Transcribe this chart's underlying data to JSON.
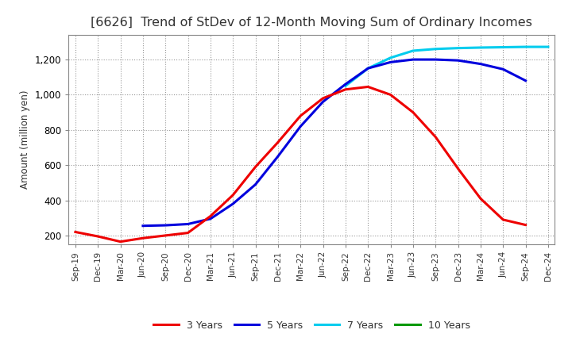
{
  "title": "[6626]  Trend of StDev of 12-Month Moving Sum of Ordinary Incomes",
  "ylabel": "Amount (million yen)",
  "background_color": "#ffffff",
  "plot_bg_color": "#ffffff",
  "grid_color": "#999999",
  "title_fontsize": 11.5,
  "title_color": "#333333",
  "legend_labels": [
    "3 Years",
    "5 Years",
    "7 Years",
    "10 Years"
  ],
  "legend_colors": [
    "#ee0000",
    "#0000dd",
    "#00ccee",
    "#009900"
  ],
  "x_labels": [
    "Sep-19",
    "Dec-19",
    "Mar-20",
    "Jun-20",
    "Sep-20",
    "Dec-20",
    "Mar-21",
    "Jun-21",
    "Sep-21",
    "Dec-21",
    "Mar-22",
    "Jun-22",
    "Sep-22",
    "Dec-22",
    "Mar-23",
    "Jun-23",
    "Sep-23",
    "Dec-23",
    "Mar-24",
    "Jun-24",
    "Sep-24",
    "Dec-24"
  ],
  "series_3y": [
    220,
    195,
    165,
    185,
    200,
    215,
    310,
    430,
    590,
    730,
    880,
    980,
    1030,
    1045,
    1000,
    900,
    760,
    580,
    410,
    290,
    260,
    null
  ],
  "series_5y": [
    null,
    null,
    null,
    255,
    258,
    265,
    295,
    380,
    490,
    650,
    820,
    960,
    1060,
    1150,
    1185,
    1200,
    1200,
    1195,
    1175,
    1145,
    1080,
    null
  ],
  "series_7y": [
    null,
    null,
    null,
    null,
    null,
    null,
    null,
    null,
    null,
    null,
    null,
    null,
    1050,
    1150,
    1210,
    1250,
    1260,
    1265,
    1268,
    1270,
    1272,
    1272
  ],
  "series_10y": [
    null,
    null,
    null,
    null,
    null,
    null,
    null,
    null,
    null,
    null,
    null,
    null,
    null,
    null,
    null,
    null,
    null,
    null,
    null,
    null,
    null,
    null
  ],
  "ylim": [
    150,
    1340
  ],
  "yticks": [
    200,
    400,
    600,
    800,
    1000,
    1200
  ],
  "line_width": 2.2
}
